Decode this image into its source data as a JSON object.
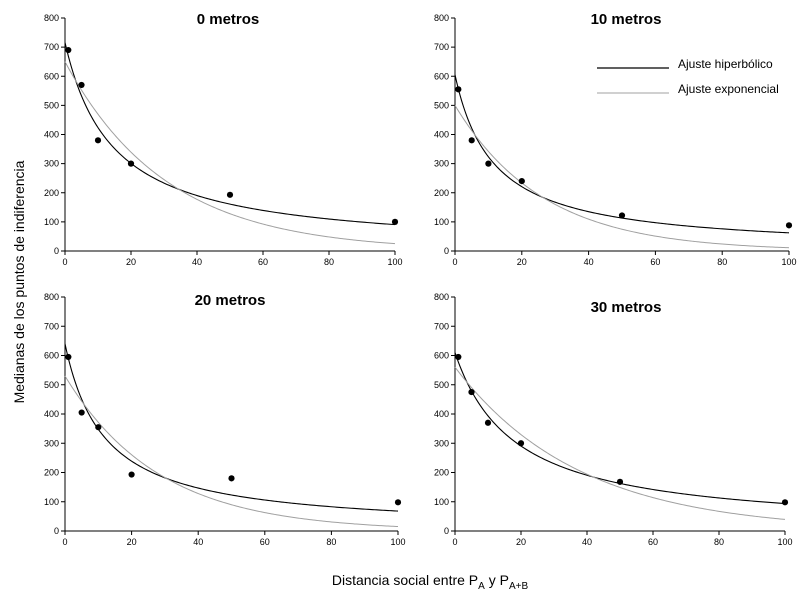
{
  "figure": {
    "ylabel": "Medianas de los puntos de indiferencia",
    "xlabel": {
      "main": "Distancia social entre P",
      "sub1": "A",
      "mid": " y P",
      "sub2": "A+B"
    },
    "legend": {
      "position": "top-right of the 10 metros panel",
      "items": [
        {
          "label": "Ajuste hiperbólico",
          "color": "#000000"
        },
        {
          "label": "Ajuste exponencial",
          "color": "#a0a0a0"
        }
      ]
    }
  },
  "chart_data": [
    {
      "type": "scatter",
      "title": "0 metros",
      "points": {
        "x": [
          1,
          5,
          10,
          20,
          50,
          100
        ],
        "y": [
          690,
          570,
          380,
          300,
          193,
          100
        ]
      },
      "series": [
        {
          "name": "Ajuste hiperbólico",
          "style": "line",
          "color": "#000000",
          "model": "hyperbolic",
          "A": 716,
          "k": 0.069
        },
        {
          "name": "Ajuste exponencial",
          "style": "line",
          "color": "#a0a0a0",
          "model": "exponential",
          "A": 650,
          "k": 0.0325
        }
      ],
      "xlim": [
        0,
        100
      ],
      "ylim": [
        0,
        800
      ],
      "xticks": [
        0,
        20,
        40,
        60,
        80,
        100
      ],
      "yticks": [
        0,
        100,
        200,
        300,
        400,
        500,
        600,
        700,
        800
      ]
    },
    {
      "type": "scatter",
      "title": "10 metros",
      "points": {
        "x": [
          1,
          5,
          10,
          20,
          50,
          100
        ],
        "y": [
          555,
          380,
          300,
          240,
          122,
          88
        ]
      },
      "series": [
        {
          "name": "Ajuste hiperbólico",
          "style": "line",
          "color": "#000000",
          "model": "hyperbolic",
          "A": 605,
          "k": 0.087
        },
        {
          "name": "Ajuste exponencial",
          "style": "line",
          "color": "#a0a0a0",
          "model": "exponential",
          "A": 500,
          "k": 0.038
        }
      ],
      "xlim": [
        0,
        100
      ],
      "ylim": [
        0,
        800
      ],
      "xticks": [
        0,
        20,
        40,
        60,
        80,
        100
      ],
      "yticks": [
        0,
        100,
        200,
        300,
        400,
        500,
        600,
        700,
        800
      ]
    },
    {
      "type": "scatter",
      "title": "20 metros",
      "points": {
        "x": [
          1,
          5,
          10,
          20,
          50,
          100
        ],
        "y": [
          595,
          405,
          355,
          193,
          180,
          98
        ]
      },
      "series": [
        {
          "name": "Ajuste hiperbólico",
          "style": "line",
          "color": "#000000",
          "model": "hyperbolic",
          "A": 640,
          "k": 0.084
        },
        {
          "name": "Ajuste exponencial",
          "style": "line",
          "color": "#a0a0a0",
          "model": "exponential",
          "A": 530,
          "k": 0.0355
        }
      ],
      "xlim": [
        0,
        100
      ],
      "ylim": [
        0,
        800
      ],
      "xticks": [
        0,
        20,
        40,
        60,
        80,
        100
      ],
      "yticks": [
        0,
        100,
        200,
        300,
        400,
        500,
        600,
        700,
        800
      ]
    },
    {
      "type": "scatter",
      "title": "30 metros",
      "points": {
        "x": [
          1,
          5,
          10,
          20,
          50,
          100
        ],
        "y": [
          595,
          475,
          370,
          300,
          168,
          98
        ]
      },
      "series": [
        {
          "name": "Ajuste hiperbólico",
          "style": "line",
          "color": "#000000",
          "model": "hyperbolic",
          "A": 610,
          "k": 0.055
        },
        {
          "name": "Ajuste exponencial",
          "style": "line",
          "color": "#a0a0a0",
          "model": "exponential",
          "A": 560,
          "k": 0.0265
        }
      ],
      "xlim": [
        0,
        100
      ],
      "ylim": [
        0,
        800
      ],
      "xticks": [
        0,
        20,
        40,
        60,
        80,
        100
      ],
      "yticks": [
        0,
        100,
        200,
        300,
        400,
        500,
        600,
        700,
        800
      ]
    }
  ]
}
